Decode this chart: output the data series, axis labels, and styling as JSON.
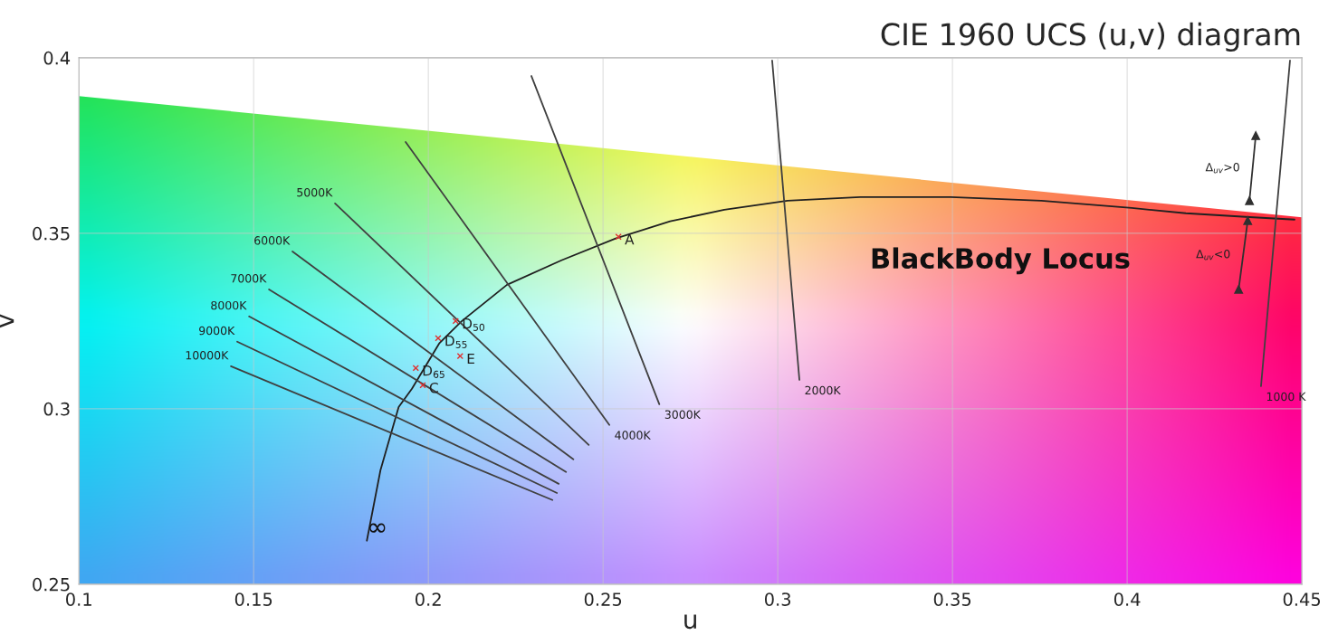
{
  "chart_data": {
    "type": "line",
    "title": "CIE 1960 UCS (u,v) diagram",
    "xlabel": "u",
    "ylabel": "v",
    "xlim": [
      0.1,
      0.45
    ],
    "xticks": [
      0.1,
      0.15,
      0.2,
      0.25,
      0.3,
      0.35,
      0.4,
      0.45
    ],
    "ylim": [
      0.25,
      0.4
    ],
    "yticks": [
      0.25,
      0.3,
      0.35,
      0.4
    ],
    "grid": true,
    "line_style": "solid",
    "series": [
      {
        "color": "#202020",
        "x": [
          0.1824,
          0.1863,
          0.1915,
          0.1953,
          0.2031,
          0.2096,
          0.2225,
          0.2381,
          0.2536,
          0.2692,
          0.2847,
          0.3028,
          0.3236,
          0.3495,
          0.3754,
          0.4013,
          0.4168,
          0.435,
          0.4479
        ],
        "values": [
          0.2624,
          0.2825,
          0.3005,
          0.3057,
          0.3186,
          0.325,
          0.3353,
          0.3423,
          0.3485,
          0.3534,
          0.3567,
          0.3593,
          0.3603,
          0.3603,
          0.3593,
          0.3572,
          0.3557,
          0.3546,
          0.3539
        ]
      },
      {
        "name": "10000K",
        "color": "#404040",
        "x": [
          0.1435,
          0.2355
        ],
        "values": [
          0.3121,
          0.274
        ]
      },
      {
        "name": "9000K",
        "color": "#404040",
        "x": [
          0.1453,
          0.2368
        ],
        "values": [
          0.3191,
          0.276
        ]
      },
      {
        "name": "8000K",
        "color": "#404040",
        "x": [
          0.1487,
          0.2373
        ],
        "values": [
          0.3263,
          0.2786
        ]
      },
      {
        "name": "7000K",
        "color": "#404040",
        "x": [
          0.1544,
          0.2394
        ],
        "values": [
          0.334,
          0.282
        ]
      },
      {
        "name": "6000K",
        "color": "#404040",
        "x": [
          0.1611,
          0.2415
        ],
        "values": [
          0.3448,
          0.2856
        ]
      },
      {
        "name": "5000K",
        "color": "#404040",
        "x": [
          0.1733,
          0.2459
        ],
        "values": [
          0.3585,
          0.2897
        ]
      },
      {
        "name": "4000K",
        "color": "#404040",
        "x": [
          0.2518,
          0.1935
        ],
        "values": [
          0.2954,
          0.376
        ]
      },
      {
        "name": "3000K",
        "color": "#404040",
        "x": [
          0.2661,
          0.2295
        ],
        "values": [
          0.3013,
          0.3948
        ]
      },
      {
        "name": "2000K",
        "color": "#404040",
        "x": [
          0.3062,
          0.2984
        ],
        "values": [
          0.3082,
          0.3992
        ]
      },
      {
        "name": "1000 K",
        "color": "#404040",
        "x": [
          0.4383,
          0.4466
        ],
        "values": [
          0.3064,
          0.3992
        ]
      },
      {
        "name": "Δ$_{uv}$>0",
        "color": "#303030",
        "marker": "triangle",
        "x": [
          0.435,
          0.4368
        ],
        "values": [
          0.3593,
          0.3778
        ]
      },
      {
        "name": "Δ$_{uv}$<0",
        "color": "#303030",
        "marker": "triangle",
        "x": [
          0.4345,
          0.4319
        ],
        "values": [
          0.3536,
          0.334
        ]
      },
      {
        "type": "scatter",
        "name": "A",
        "color": "#e03030",
        "marker": "cross",
        "x": [
          0.2544
        ],
        "values": [
          0.349
        ]
      },
      {
        "type": "scatter",
        "name": "D$_{50}$",
        "color": "#e03030",
        "marker": "cross",
        "x": [
          0.2078
        ],
        "values": [
          0.325
        ]
      },
      {
        "type": "scatter",
        "name": "D$_{55}$",
        "color": "#e03030",
        "marker": "cross",
        "x": [
          0.2028
        ],
        "values": [
          0.3201
        ]
      },
      {
        "type": "scatter",
        "name": "D$_{65}$",
        "color": "#e03030",
        "marker": "cross",
        "x": [
          0.1964
        ],
        "values": [
          0.3116
        ]
      },
      {
        "type": "scatter",
        "name": "C",
        "color": "#e03030",
        "marker": "cross",
        "x": [
          0.1984
        ],
        "values": [
          0.3067
        ]
      },
      {
        "type": "scatter",
        "name": "E",
        "color": "#e03030",
        "marker": "cross",
        "x": [
          0.2091
        ],
        "values": [
          0.315
        ]
      }
    ],
    "annotations": [
      "BlackBody Locus",
      {
        "text": "∞",
        "x": 0.1824,
        "y": 0.2624
      }
    ]
  }
}
